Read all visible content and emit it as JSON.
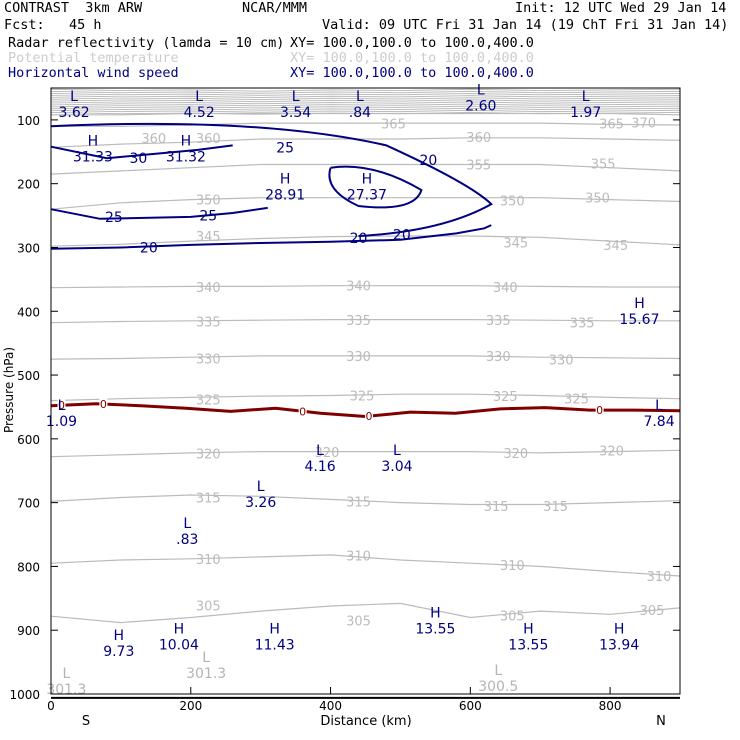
{
  "header": {
    "model": "CONTRAST  3km ARW",
    "org": "NCAR/MMM",
    "init": "Init: 12 UTC Wed 29 Jan 14",
    "fcst": "Fcst:   45 h",
    "valid": "Valid: 09 UTC Fri 31 Jan 14 (19 ChT Fri 31 Jan 14)"
  },
  "fields": [
    {
      "label": "Radar reflectivity (lamda = 10 cm)",
      "xy": "XY= 100.0,100.0 to 100.0,400.0",
      "color": "#000000"
    },
    {
      "label": "Potential temperature",
      "xy": "XY= 100.0,100.0 to 100.0,400.0",
      "color": "#cccccc"
    },
    {
      "label": "Horizontal wind speed",
      "xy": "XY= 100.0,100.0 to 100.0,400.0",
      "color": "#000080"
    }
  ],
  "chart_data": {
    "type": "line",
    "xlabel": "Distance (km)",
    "ylabel": "Pressure (hPa)",
    "xlim": [
      0,
      900
    ],
    "ylim": [
      1000,
      50
    ],
    "xticks": [
      0,
      200,
      400,
      600,
      800
    ],
    "yticks": [
      100,
      200,
      300,
      400,
      500,
      600,
      700,
      800,
      900,
      1000
    ],
    "end_labels": {
      "left": "S",
      "right": "N"
    },
    "theta_contours": [
      {
        "level": "305",
        "y": [
          878,
          888,
          880,
          870,
          862,
          858,
          880,
          870,
          875,
          865
        ]
      },
      {
        "level": "310",
        "y": [
          795,
          790,
          788,
          785,
          782,
          790,
          795,
          800,
          808,
          815
        ]
      },
      {
        "level": "315",
        "y": [
          698,
          692,
          688,
          690,
          695,
          700,
          703,
          703,
          700,
          697
        ]
      },
      {
        "level": "320",
        "y": [
          628,
          625,
          622,
          620,
          620,
          620,
          620,
          622,
          620,
          618
        ]
      },
      {
        "level": "325",
        "y": [
          540,
          537,
          535,
          533,
          532,
          530,
          530,
          532,
          535,
          537
        ]
      },
      {
        "level": "330",
        "y": [
          475,
          474,
          472,
          470,
          470,
          470,
          470,
          472,
          473,
          474
        ]
      },
      {
        "level": "335",
        "y": [
          418,
          416,
          415,
          414,
          413,
          413,
          413,
          414,
          415,
          415
        ]
      },
      {
        "level": "340",
        "y": [
          363,
          362,
          361,
          361,
          360,
          360,
          360,
          361,
          362,
          362
        ]
      },
      {
        "level": "345",
        "y": [
          298,
          295,
          290,
          286,
          283,
          282,
          282,
          284,
          290,
          296
        ]
      },
      {
        "level": "350",
        "y": [
          240,
          230,
          225,
          222,
          222,
          222,
          222,
          222,
          225,
          228
        ]
      },
      {
        "level": "355",
        "y": [
          185,
          180,
          175,
          170,
          170,
          170,
          170,
          170,
          175,
          180
        ]
      },
      {
        "level": "360",
        "y": [
          143,
          138,
          135,
          130,
          130,
          130,
          128,
          128,
          130,
          132
        ]
      },
      {
        "level": "365",
        "y": [
          110,
          110,
          108,
          105,
          105,
          105,
          105,
          105,
          107,
          108
        ]
      },
      {
        "level": "370",
        "y": [
          92,
          92,
          90,
          90,
          90,
          90,
          90,
          90,
          90,
          92
        ]
      }
    ],
    "theta_labels": [
      {
        "text": "360",
        "x": 147,
        "y": 128
      },
      {
        "text": "360",
        "x": 225,
        "y": 128
      },
      {
        "text": "360",
        "x": 612,
        "y": 127
      },
      {
        "text": "365",
        "x": 490,
        "y": 106
      },
      {
        "text": "365",
        "x": 802,
        "y": 106
      },
      {
        "text": "370",
        "x": 848,
        "y": 104
      },
      {
        "text": "355",
        "x": 612,
        "y": 170
      },
      {
        "text": "355",
        "x": 790,
        "y": 168
      },
      {
        "text": "350",
        "x": 225,
        "y": 225
      },
      {
        "text": "350",
        "x": 660,
        "y": 226
      },
      {
        "text": "350",
        "x": 782,
        "y": 222
      },
      {
        "text": "345",
        "x": 225,
        "y": 282
      },
      {
        "text": "345",
        "x": 665,
        "y": 292
      },
      {
        "text": "345",
        "x": 808,
        "y": 296
      },
      {
        "text": "340",
        "x": 225,
        "y": 362
      },
      {
        "text": "340",
        "x": 440,
        "y": 360
      },
      {
        "text": "340",
        "x": 650,
        "y": 362
      },
      {
        "text": "335",
        "x": 225,
        "y": 416
      },
      {
        "text": "335",
        "x": 440,
        "y": 414
      },
      {
        "text": "335",
        "x": 640,
        "y": 414
      },
      {
        "text": "335",
        "x": 760,
        "y": 418
      },
      {
        "text": "330",
        "x": 225,
        "y": 474
      },
      {
        "text": "330",
        "x": 440,
        "y": 470
      },
      {
        "text": "330",
        "x": 640,
        "y": 470
      },
      {
        "text": "330",
        "x": 730,
        "y": 476
      },
      {
        "text": "325",
        "x": 225,
        "y": 538
      },
      {
        "text": "325",
        "x": 445,
        "y": 532
      },
      {
        "text": "325",
        "x": 650,
        "y": 533
      },
      {
        "text": "325",
        "x": 752,
        "y": 537
      },
      {
        "text": "320",
        "x": 225,
        "y": 623
      },
      {
        "text": "320",
        "x": 395,
        "y": 621
      },
      {
        "text": "320",
        "x": 665,
        "y": 622
      },
      {
        "text": "320",
        "x": 802,
        "y": 618
      },
      {
        "text": "315",
        "x": 225,
        "y": 692
      },
      {
        "text": "315",
        "x": 440,
        "y": 698
      },
      {
        "text": "315",
        "x": 637,
        "y": 705
      },
      {
        "text": "315",
        "x": 722,
        "y": 705
      },
      {
        "text": "310",
        "x": 225,
        "y": 788
      },
      {
        "text": "310",
        "x": 440,
        "y": 783
      },
      {
        "text": "310",
        "x": 660,
        "y": 798
      },
      {
        "text": "310",
        "x": 870,
        "y": 815
      },
      {
        "text": "305",
        "x": 225,
        "y": 861
      },
      {
        "text": "305",
        "x": 440,
        "y": 885
      },
      {
        "text": "305",
        "x": 660,
        "y": 877
      },
      {
        "text": "305",
        "x": 860,
        "y": 868
      }
    ],
    "wind_contours": [
      {
        "level": "20",
        "y": [
          302,
          300,
          296,
          293,
          291,
          288,
          278,
          270,
          265
        ]
      },
      {
        "level": "25",
        "y": [
          240,
          255,
          252,
          246,
          238
        ]
      },
      {
        "level": "30",
        "y": [
          142,
          160,
          153,
          147,
          140
        ]
      }
    ],
    "wind_labels": [
      {
        "text": "20",
        "x": 140,
        "y": 300
      },
      {
        "text": "20",
        "x": 440,
        "y": 285
      },
      {
        "text": "20",
        "x": 502,
        "y": 280
      },
      {
        "text": "20",
        "x": 540,
        "y": 163
      },
      {
        "text": "25",
        "x": 90,
        "y": 252
      },
      {
        "text": "25",
        "x": 225,
        "y": 250
      },
      {
        "text": "25",
        "x": 335,
        "y": 143
      },
      {
        "text": "30",
        "x": 125,
        "y": 160
      }
    ],
    "zero_line": {
      "level": "0",
      "y": [
        548,
        545,
        548,
        552,
        557,
        552,
        560,
        565,
        558,
        560,
        553,
        551,
        555,
        555,
        556
      ]
    },
    "zero_labels": [
      {
        "text": "0",
        "x": 15
      },
      {
        "text": "0",
        "x": 75
      },
      {
        "text": "0",
        "x": 360
      },
      {
        "text": "0",
        "x": 455
      },
      {
        "text": "0",
        "x": 785
      }
    ],
    "extrema": [
      {
        "type": "L",
        "value": "3.62",
        "x": 33,
        "y": 70,
        "color": "#000080"
      },
      {
        "type": "L",
        "value": "4.52",
        "x": 212,
        "y": 70,
        "color": "#000080"
      },
      {
        "type": "L",
        "value": "3.54",
        "x": 350,
        "y": 70,
        "color": "#000080"
      },
      {
        "type": "L",
        "value": ".84",
        "x": 442,
        "y": 70,
        "color": "#000080"
      },
      {
        "type": "L",
        "value": "2.60",
        "x": 615,
        "y": 60,
        "color": "#000080"
      },
      {
        "type": "L",
        "value": "1.97",
        "x": 765,
        "y": 70,
        "color": "#000080"
      },
      {
        "type": "H",
        "value": "31.33",
        "x": 60,
        "y": 140,
        "color": "#000080"
      },
      {
        "type": "H",
        "value": "31.32",
        "x": 193,
        "y": 140,
        "color": "#000080"
      },
      {
        "type": "H",
        "value": "28.91",
        "x": 335,
        "y": 200,
        "color": "#000080"
      },
      {
        "type": "H",
        "value": "27.37",
        "x": 452,
        "y": 200,
        "color": "#000080"
      },
      {
        "type": "H",
        "value": "15.67",
        "x": 842,
        "y": 395,
        "color": "#000080"
      },
      {
        "type": "L",
        "value": "1.09",
        "x": 15,
        "y": 555,
        "color": "#000080"
      },
      {
        "type": "L",
        "value": "7.84",
        "x": 870,
        "y": 555,
        "color": "#000080"
      },
      {
        "type": "L",
        "value": "4.16",
        "x": 385,
        "y": 625,
        "color": "#000080"
      },
      {
        "type": "L",
        "value": "3.04",
        "x": 495,
        "y": 625,
        "color": "#000080"
      },
      {
        "type": "L",
        "value": "3.26",
        "x": 300,
        "y": 682,
        "color": "#000080"
      },
      {
        "type": "L",
        "value": ".83",
        "x": 195,
        "y": 740,
        "color": "#000080"
      },
      {
        "type": "H",
        "value": "9.73",
        "x": 97,
        "y": 915,
        "color": "#000080"
      },
      {
        "type": "H",
        "value": "10.04",
        "x": 183,
        "y": 905,
        "color": "#000080"
      },
      {
        "type": "H",
        "value": "11.43",
        "x": 320,
        "y": 905,
        "color": "#000080"
      },
      {
        "type": "H",
        "value": "13.55",
        "x": 550,
        "y": 880,
        "color": "#000080"
      },
      {
        "type": "H",
        "value": "13.55",
        "x": 683,
        "y": 905,
        "color": "#000080"
      },
      {
        "type": "H",
        "value": "13.94",
        "x": 813,
        "y": 905,
        "color": "#000080"
      },
      {
        "type": "L",
        "value": "301.3",
        "x": 22,
        "y": 975,
        "color": "#b4b4b4"
      },
      {
        "type": "L",
        "value": "301.3",
        "x": 222,
        "y": 950,
        "color": "#b4b4b4"
      },
      {
        "type": "L",
        "value": "300.5",
        "x": 640,
        "y": 970,
        "color": "#b4b4b4"
      }
    ],
    "colors": {
      "theta": "#bbbbbb",
      "wind": "#000080",
      "zero": "#800000",
      "extrema": "#000080",
      "theta_extrema": "#b4b4b4"
    }
  }
}
